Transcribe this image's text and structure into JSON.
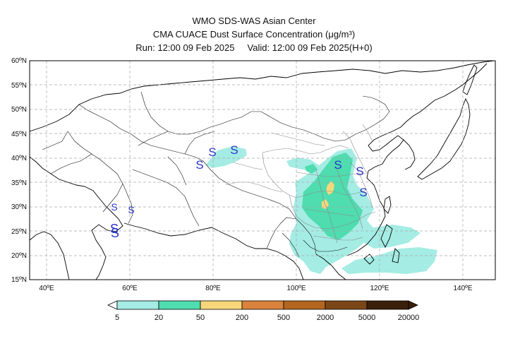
{
  "header": {
    "line1": "WMO SDS-WAS Asian Center",
    "line2": "CMA CUACE Dust Surface Concentration (μg/m³)",
    "line3": "Run: 12:00 09 Feb 2025     Valid: 12:00 09 Feb 2025(H+0)"
  },
  "map": {
    "lat_labels": [
      "60ºN",
      "55ºN",
      "50ºN",
      "45ºN",
      "40ºN",
      "35ºN",
      "30ºN",
      "25ºN",
      "20ºN",
      "15ºN"
    ],
    "lon_labels": [
      "40ºE",
      "60ºE",
      "80ºE",
      "100ºE",
      "120ºE",
      "140ºE"
    ],
    "dust_storm_symbol": "S",
    "dust_symbol_color": "#2a35c8"
  },
  "colorbar": {
    "labels": [
      "5",
      "20",
      "50",
      "200",
      "500",
      "2000",
      "5000",
      "20000"
    ],
    "colors": [
      "#a4ece4",
      "#4fdcae",
      "#f7d77a",
      "#d9823b",
      "#b3661f",
      "#7c4716",
      "#3a1f0a"
    ]
  }
}
